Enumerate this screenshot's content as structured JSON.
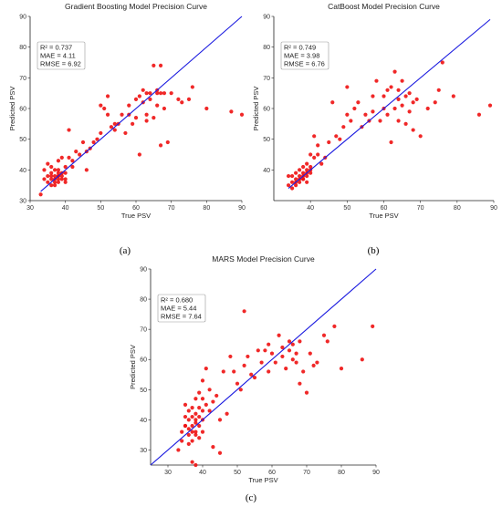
{
  "colors": {
    "points": "#ee1111",
    "fit_line": "#1a1adf",
    "axis": "#222222"
  },
  "chart_data": [
    {
      "type": "scatter",
      "panel_label": "(a)",
      "title": "Gradient Boosting Model Precision Curve",
      "xlabel": "True PSV",
      "ylabel": "Predicted PSV",
      "xlim": [
        30,
        90
      ],
      "ylim": [
        30,
        90
      ],
      "xticks": [
        30,
        40,
        50,
        60,
        70,
        80,
        90
      ],
      "yticks": [
        30,
        40,
        50,
        60,
        70,
        80,
        90
      ],
      "grid": false,
      "stats": [
        "R² = 0.737",
        "MAE = 4.11",
        "RMSE = 6.92"
      ],
      "reference_line": {
        "from": [
          33,
          33
        ],
        "to": [
          90,
          90
        ]
      },
      "x": [
        33,
        34,
        34,
        35,
        35,
        35,
        36,
        36,
        36,
        36,
        37,
        37,
        37,
        37,
        37,
        38,
        38,
        38,
        38,
        38,
        38,
        39,
        39,
        39,
        39,
        40,
        40,
        40,
        41,
        41,
        42,
        42,
        43,
        44,
        45,
        46,
        46,
        47,
        48,
        49,
        50,
        50,
        51,
        52,
        52,
        53,
        54,
        54,
        55,
        56,
        57,
        58,
        58,
        59,
        60,
        60,
        61,
        61,
        62,
        62,
        63,
        63,
        63,
        64,
        64,
        65,
        65,
        66,
        66,
        66,
        67,
        67,
        67,
        68,
        68,
        69,
        70,
        72,
        73,
        75,
        76,
        80,
        87,
        90,
        36,
        38,
        40
      ],
      "y": [
        32,
        37,
        40,
        36,
        38,
        42,
        35,
        37,
        39,
        41,
        36,
        38,
        40,
        37,
        35,
        38,
        39,
        37,
        36,
        40,
        43,
        38,
        37,
        39,
        44,
        39,
        41,
        36,
        44,
        53,
        41,
        43,
        46,
        45,
        49,
        46,
        40,
        47,
        49,
        50,
        52,
        61,
        60,
        64,
        58,
        54,
        55,
        53,
        55,
        58,
        52,
        58,
        61,
        55,
        63,
        57,
        64,
        45,
        62,
        66,
        65,
        58,
        56,
        65,
        63,
        57,
        74,
        61,
        66,
        65,
        48,
        65,
        74,
        65,
        60,
        49,
        65,
        63,
        62,
        63,
        67,
        60,
        59,
        58,
        38,
        38,
        37
      ]
    },
    {
      "type": "scatter",
      "panel_label": "(b)",
      "title": "CatBoost Model Precision Curve",
      "xlabel": "True PSV",
      "ylabel": "Predicted PSV",
      "xlim": [
        30,
        90
      ],
      "ylim": [
        30,
        90
      ],
      "xticks": [
        40,
        50,
        60,
        70,
        80,
        90
      ],
      "yticks": [
        40,
        50,
        60,
        70,
        80,
        90
      ],
      "grid": false,
      "stats": [
        "R² = 0.749",
        "MAE = 3.98",
        "RMSE = 6.76"
      ],
      "reference_line": {
        "from": [
          34,
          34
        ],
        "to": [
          89,
          89
        ]
      },
      "x": [
        34,
        34,
        35,
        35,
        35,
        36,
        36,
        36,
        37,
        37,
        37,
        37,
        38,
        38,
        38,
        38,
        39,
        39,
        39,
        39,
        40,
        40,
        40,
        41,
        41,
        42,
        42,
        43,
        44,
        45,
        46,
        47,
        48,
        49,
        50,
        50,
        51,
        52,
        53,
        54,
        55,
        56,
        57,
        57,
        58,
        59,
        60,
        60,
        61,
        61,
        62,
        62,
        63,
        63,
        64,
        64,
        64,
        65,
        65,
        66,
        66,
        67,
        67,
        68,
        68,
        69,
        70,
        72,
        74,
        75,
        76,
        79,
        86,
        89,
        36,
        38,
        39,
        40
      ],
      "y": [
        35,
        38,
        36,
        34,
        38,
        37,
        35,
        39,
        38,
        36,
        40,
        37,
        39,
        37,
        41,
        38,
        40,
        38,
        42,
        36,
        41,
        39,
        45,
        44,
        51,
        45,
        48,
        42,
        44,
        49,
        62,
        51,
        50,
        54,
        67,
        58,
        56,
        60,
        62,
        54,
        58,
        56,
        64,
        59,
        69,
        56,
        64,
        60,
        66,
        58,
        67,
        49,
        72,
        60,
        63,
        66,
        56,
        69,
        61,
        55,
        64,
        65,
        59,
        62,
        53,
        63,
        51,
        60,
        62,
        66,
        75,
        64,
        58,
        61,
        36,
        37,
        39,
        40
      ]
    },
    {
      "type": "scatter",
      "panel_label": "(c)",
      "title": "MARS Model Precision Curve",
      "xlabel": "True PSV",
      "ylabel": "Predicted PSV",
      "xlim": [
        25,
        90
      ],
      "ylim": [
        25,
        90
      ],
      "xticks": [
        30,
        40,
        50,
        60,
        70,
        80,
        90
      ],
      "yticks": [
        30,
        40,
        50,
        60,
        70,
        80,
        90
      ],
      "grid": false,
      "stats": [
        "R² = 0.680",
        "MAE = 5.44",
        "RMSE = 7.64"
      ],
      "reference_line": {
        "from": [
          25,
          25
        ],
        "to": [
          90,
          90
        ]
      },
      "x": [
        33,
        34,
        34,
        35,
        35,
        35,
        36,
        36,
        36,
        36,
        37,
        37,
        37,
        37,
        37,
        38,
        38,
        38,
        38,
        38,
        38,
        39,
        39,
        39,
        39,
        40,
        40,
        40,
        40,
        41,
        41,
        42,
        42,
        43,
        44,
        45,
        46,
        47,
        48,
        49,
        50,
        51,
        52,
        52,
        53,
        54,
        55,
        56,
        57,
        58,
        59,
        59,
        60,
        61,
        62,
        63,
        63,
        64,
        65,
        65,
        66,
        66,
        67,
        67,
        68,
        68,
        69,
        70,
        71,
        72,
        73,
        75,
        76,
        78,
        80,
        86,
        89,
        37,
        38,
        39,
        36,
        35,
        40,
        43,
        45
      ],
      "y": [
        30,
        33,
        36,
        38,
        41,
        45,
        35,
        37,
        40,
        43,
        33,
        38,
        41,
        36,
        44,
        36,
        39,
        42,
        35,
        47,
        40,
        38,
        41,
        44,
        49,
        40,
        43,
        47,
        53,
        45,
        57,
        43,
        50,
        46,
        48,
        40,
        56,
        42,
        61,
        56,
        52,
        50,
        76,
        58,
        61,
        55,
        54,
        63,
        59,
        63,
        65,
        56,
        62,
        59,
        68,
        61,
        64,
        57,
        63,
        66,
        60,
        65,
        59,
        62,
        52,
        66,
        56,
        49,
        62,
        58,
        59,
        68,
        66,
        71,
        57,
        60,
        71,
        26,
        25,
        34,
        32,
        38,
        36,
        31,
        29
      ]
    }
  ]
}
